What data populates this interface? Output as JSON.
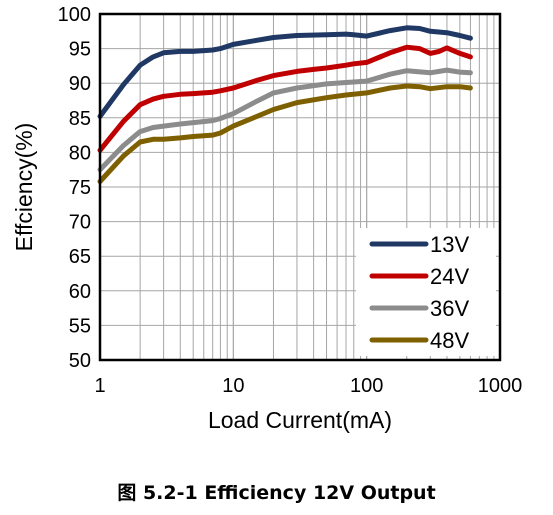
{
  "caption": "图 5.2-1 Efficiency 12V Output",
  "chart_data": {
    "type": "line",
    "title": "",
    "xlabel": "Load Current(mA)",
    "ylabel": "Effciency(%)",
    "xscale": "log",
    "xlim": [
      1,
      1000
    ],
    "ylim": [
      50,
      100
    ],
    "xticks": [
      1,
      10,
      100,
      1000
    ],
    "xtick_labels": [
      "1",
      "10",
      "100",
      "1000"
    ],
    "yticks": [
      50,
      55,
      60,
      65,
      70,
      75,
      80,
      85,
      90,
      95,
      100
    ],
    "ytick_labels": [
      "50",
      "55",
      "60",
      "65",
      "70",
      "75",
      "80",
      "85",
      "90",
      "95",
      "100"
    ],
    "grid": true,
    "legend_position": "bottom-right",
    "series": [
      {
        "name": "13V",
        "color": "#1f3864",
        "x": [
          1,
          1.5,
          2,
          2.5,
          3,
          4,
          5,
          7,
          8,
          10,
          15,
          20,
          30,
          50,
          70,
          80,
          100,
          150,
          200,
          250,
          300,
          400,
          500,
          600
        ],
        "y": [
          85.2,
          89.8,
          92.6,
          93.8,
          94.4,
          94.6,
          94.6,
          94.8,
          95.0,
          95.6,
          96.2,
          96.6,
          96.9,
          97.0,
          97.1,
          97.0,
          96.8,
          97.6,
          98.0,
          97.9,
          97.5,
          97.3,
          96.9,
          96.5
        ]
      },
      {
        "name": "24V",
        "color": "#c00000",
        "x": [
          1,
          1.5,
          2,
          2.5,
          3,
          4,
          5,
          7,
          8,
          10,
          15,
          20,
          30,
          40,
          50,
          70,
          80,
          100,
          150,
          200,
          250,
          300,
          350,
          400,
          500,
          600
        ],
        "y": [
          80.3,
          84.5,
          86.9,
          87.7,
          88.1,
          88.4,
          88.5,
          88.7,
          88.9,
          89.3,
          90.4,
          91.1,
          91.7,
          92.0,
          92.2,
          92.6,
          92.8,
          93.0,
          94.4,
          95.2,
          95.0,
          94.3,
          94.6,
          95.1,
          94.3,
          93.8
        ]
      },
      {
        "name": "36V",
        "color": "#8c8c8c",
        "x": [
          1,
          1.5,
          2,
          2.5,
          3,
          4,
          5,
          7,
          8,
          10,
          15,
          20,
          30,
          50,
          70,
          100,
          150,
          200,
          300,
          400,
          500,
          600
        ],
        "y": [
          77.5,
          81.0,
          83.0,
          83.6,
          83.8,
          84.1,
          84.3,
          84.6,
          84.9,
          85.6,
          87.4,
          88.6,
          89.3,
          89.9,
          90.1,
          90.3,
          91.3,
          91.8,
          91.5,
          91.9,
          91.6,
          91.5
        ]
      },
      {
        "name": "48V",
        "color": "#7f6000",
        "x": [
          1,
          1.5,
          2,
          2.5,
          3,
          4,
          5,
          7,
          8,
          10,
          15,
          20,
          30,
          50,
          70,
          100,
          150,
          200,
          250,
          300,
          400,
          500,
          600
        ],
        "y": [
          75.8,
          79.5,
          81.5,
          81.9,
          81.9,
          82.1,
          82.3,
          82.5,
          82.8,
          83.8,
          85.2,
          86.2,
          87.2,
          87.9,
          88.3,
          88.6,
          89.3,
          89.6,
          89.5,
          89.2,
          89.5,
          89.5,
          89.3
        ]
      }
    ]
  }
}
